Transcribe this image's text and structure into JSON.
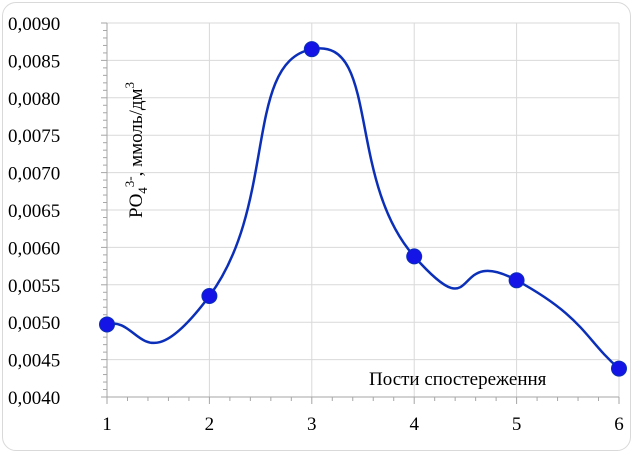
{
  "chart_data": {
    "type": "line",
    "title": "",
    "xlabel": "Пости спостереження",
    "ylabel_parts": [
      "PO",
      "4",
      "3-",
      ", ммоль/дм",
      "3"
    ],
    "categories": [
      "1",
      "2",
      "3",
      "4",
      "5",
      "6"
    ],
    "x": [
      1,
      2,
      3,
      4,
      5,
      6
    ],
    "series": [
      {
        "values": [
          0.00497,
          0.00535,
          0.00865,
          0.00588,
          0.00556,
          0.00438
        ]
      }
    ],
    "ylim": [
      0.004,
      0.009
    ],
    "xlim": [
      1,
      6
    ],
    "y_ticks": [
      "0,0040",
      "0,0045",
      "0,0050",
      "0,0055",
      "0,0060",
      "0,0065",
      "0,0070",
      "0,0075",
      "0,0080",
      "0,0085",
      "0,0090"
    ],
    "grid": true,
    "smooth": true,
    "line_color": "#0b2fb8",
    "marker_color": "#1414e6",
    "grid_color": "#d9d9d9"
  }
}
